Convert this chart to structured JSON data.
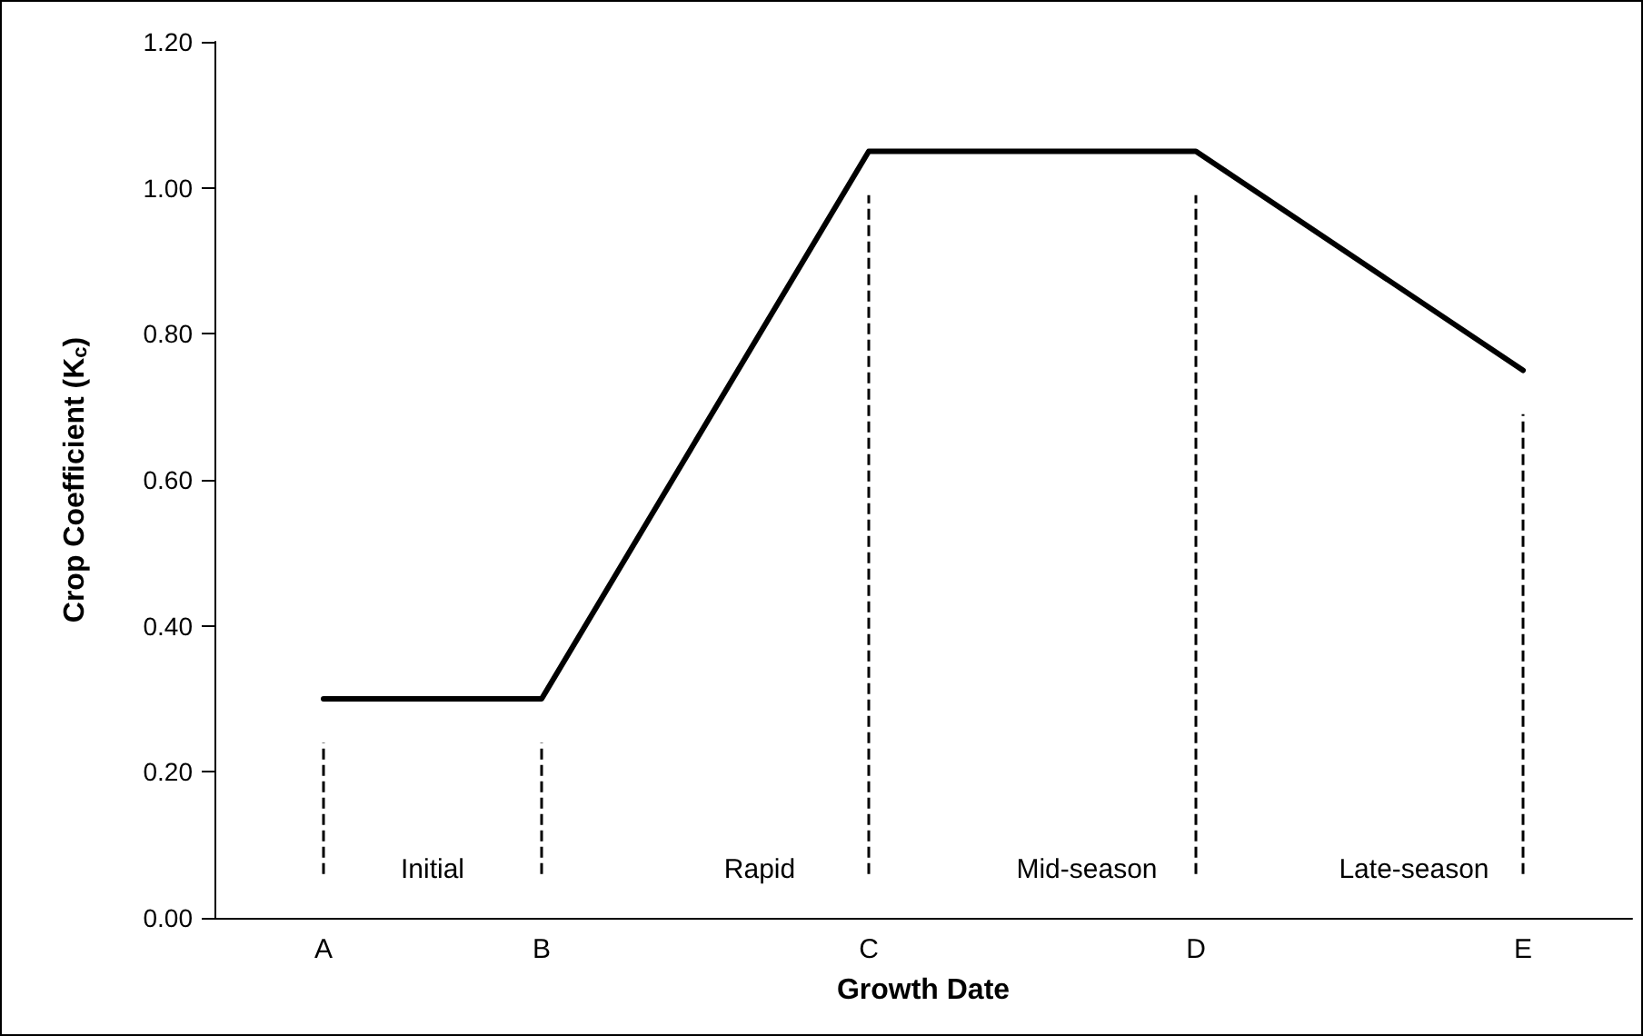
{
  "chart_data": {
    "type": "line",
    "xlabel": "Growth Date",
    "ylabel": "Crop Coefficient (K$_{c}$)",
    "categories": [
      null,
      "A",
      null,
      "B",
      null,
      null,
      "C",
      null,
      null,
      "D",
      null,
      null,
      "E",
      null
    ],
    "series": [
      {
        "color": "#000000",
        "values": [
          null,
          0.3,
          null,
          0.3,
          null,
          null,
          1.05,
          null,
          null,
          1.05,
          null,
          null,
          0.75,
          null
        ]
      }
    ],
    "ylim": [
      0,
      1.2
    ],
    "yticks": [
      {
        "value": 0,
        "label": "0.00"
      },
      {
        "value": 0.2,
        "label": "0.20"
      },
      {
        "value": 0.4,
        "label": "0.40"
      },
      {
        "value": 0.6,
        "label": "0.60"
      },
      {
        "value": 0.8,
        "label": "0.80"
      },
      {
        "value": 1.0,
        "label": "1.00"
      },
      {
        "value": 1.2,
        "label": "1.20"
      }
    ],
    "ref_lines": [
      {
        "axis": "x",
        "value": "A",
        "line_style": "dashed",
        "color": "#000000"
      },
      {
        "axis": "x",
        "value": "B",
        "line_style": "dashed",
        "color": "#000000"
      },
      {
        "axis": "x",
        "value": "C",
        "line_style": "dashed",
        "color": "#000000"
      },
      {
        "axis": "x",
        "value": "D",
        "line_style": "dashed",
        "color": "#000000"
      },
      {
        "axis": "x",
        "value": "E",
        "line_style": "dashed",
        "color": "#000000"
      }
    ],
    "annotations": [
      "Initial",
      "Rapid",
      "Mid-season",
      "Late-season"
    ],
    "grid": false,
    "marker": "none",
    "line_style": "solid"
  }
}
